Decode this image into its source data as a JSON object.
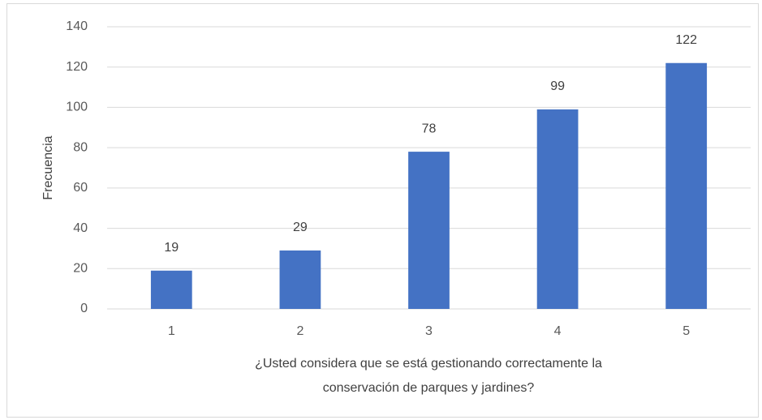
{
  "chart_data": {
    "type": "bar",
    "categories": [
      "1",
      "2",
      "3",
      "4",
      "5"
    ],
    "values": [
      19,
      29,
      78,
      99,
      122
    ],
    "color": "#4472c4",
    "ylabel": "Frecuencia",
    "xlabel": [
      "¿Usted considera que se está gestionando correctamente la",
      "conservación de parques y jardines?"
    ],
    "ylim": [
      0,
      140
    ],
    "yticks": [
      0,
      20,
      40,
      60,
      80,
      100,
      120,
      140
    ],
    "grid": true
  }
}
